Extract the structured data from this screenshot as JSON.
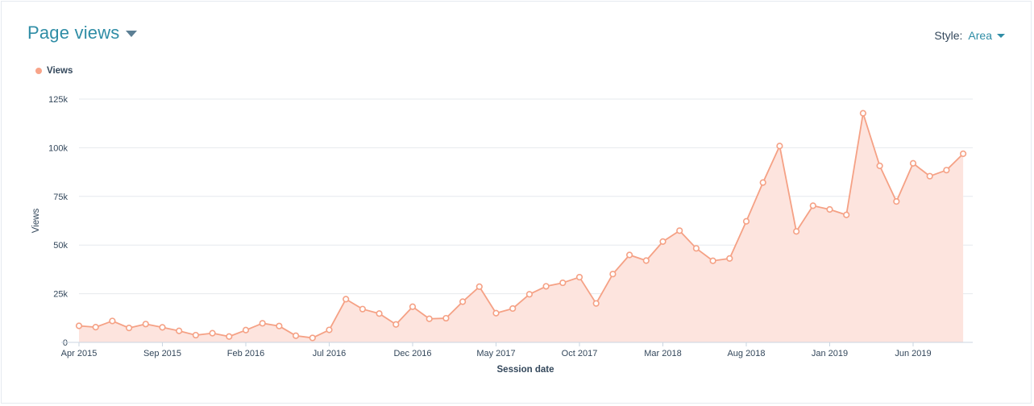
{
  "header": {
    "title": "Page views",
    "style_label": "Style:",
    "style_value": "Area"
  },
  "colors": {
    "accent": "#2f8da6",
    "series_line": "#f5a185",
    "series_fill": "#fde4de",
    "grid": "#e6e9ed"
  },
  "chart_data": {
    "type": "area",
    "title": "Page views",
    "xlabel": "Session date",
    "ylabel": "Views",
    "ylim": [
      0,
      125000
    ],
    "y_ticks": [
      0,
      25000,
      50000,
      75000,
      100000,
      125000
    ],
    "y_tick_labels": [
      "0",
      "25k",
      "50k",
      "75k",
      "100k",
      "125k"
    ],
    "x_tick_labels": [
      "Apr 2015",
      "Sep 2015",
      "Feb 2016",
      "Jul 2016",
      "Dec 2016",
      "May 2017",
      "Oct 2017",
      "Mar 2018",
      "Aug 2018",
      "Jan 2019",
      "Jun 2019"
    ],
    "x_tick_every": 5,
    "grid": true,
    "legend": "top-left",
    "categories": [
      "Apr 2015",
      "May 2015",
      "Jun 2015",
      "Jul 2015",
      "Aug 2015",
      "Sep 2015",
      "Oct 2015",
      "Nov 2015",
      "Dec 2015",
      "Jan 2016",
      "Feb 2016",
      "Mar 2016",
      "Apr 2016",
      "May 2016",
      "Jun 2016",
      "Jul 2016",
      "Aug 2016",
      "Sep 2016",
      "Oct 2016",
      "Nov 2016",
      "Dec 2016",
      "Jan 2017",
      "Feb 2017",
      "Mar 2017",
      "Apr 2017",
      "May 2017",
      "Jun 2017",
      "Jul 2017",
      "Aug 2017",
      "Sep 2017",
      "Oct 2017",
      "Nov 2017",
      "Dec 2017",
      "Jan 2018",
      "Feb 2018",
      "Mar 2018",
      "Apr 2018",
      "May 2018",
      "Jun 2018",
      "Jul 2018",
      "Aug 2018",
      "Sep 2018",
      "Oct 2018",
      "Nov 2018",
      "Dec 2018",
      "Jan 2019",
      "Feb 2019",
      "Mar 2019",
      "Apr 2019",
      "May 2019",
      "Jun 2019",
      "Jul 2019",
      "Aug 2019",
      "Sep 2019"
    ],
    "series": [
      {
        "name": "Views",
        "values": [
          8500,
          7800,
          11000,
          7400,
          9400,
          7700,
          5900,
          3700,
          4700,
          3000,
          6300,
          9800,
          8400,
          3400,
          2300,
          6400,
          22200,
          17100,
          14800,
          9200,
          18300,
          12100,
          12400,
          20900,
          28600,
          15000,
          17400,
          24700,
          28800,
          30600,
          33500,
          20000,
          35100,
          44900,
          42000,
          51800,
          57400,
          48300,
          41900,
          43100,
          62200,
          82100,
          100900,
          57000,
          70200,
          68300,
          65500,
          117700,
          90700,
          72400,
          92000,
          85400,
          88500,
          96900
        ]
      }
    ]
  }
}
